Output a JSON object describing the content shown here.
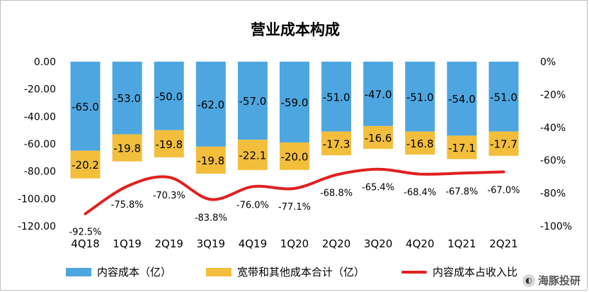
{
  "chart_data": {
    "type": "bar",
    "title": "营业成本构成",
    "categories": [
      "4Q18",
      "1Q19",
      "2Q19",
      "3Q19",
      "4Q19",
      "1Q20",
      "2Q20",
      "3Q20",
      "4Q20",
      "1Q21",
      "2Q21"
    ],
    "series": [
      {
        "name": "内容成本（亿）",
        "chart": "stacked-bar",
        "axis": "left",
        "values": [
          -65.0,
          -53.0,
          -50.0,
          -62.0,
          -57.0,
          -59.0,
          -51.0,
          -47.0,
          -51.0,
          -54.0,
          -51.0
        ],
        "labels": [
          "-65.0",
          "-53.0",
          "-50.0",
          "-62.0",
          "-57.0",
          "-59.0",
          "-51.0",
          "-47.0",
          "-51.0",
          "-54.0",
          "-51.0"
        ]
      },
      {
        "name": "宽带和其他成本合计（亿）",
        "chart": "stacked-bar",
        "axis": "left",
        "values": [
          -20.2,
          -19.8,
          -19.8,
          -19.8,
          -22.1,
          -20.0,
          -17.3,
          -16.6,
          -16.8,
          -17.1,
          -17.7
        ],
        "labels": [
          "-20.2",
          "-19.8",
          "-19.8",
          "-19.8",
          "-22.1",
          "-20.0",
          "-17.3",
          "-16.6",
          "-16.8",
          "-17.1",
          "-17.7"
        ]
      },
      {
        "name": "内容成本占收入比",
        "chart": "line",
        "axis": "right",
        "values": [
          -92.5,
          -75.8,
          -70.3,
          -83.8,
          -76.0,
          -77.1,
          -68.8,
          -65.4,
          -68.4,
          -67.8,
          -67.0
        ],
        "labels": [
          "-92.5%",
          "-75.8%",
          "-70.3%",
          "-83.8%",
          "-76.0%",
          "-77.1%",
          "-68.8%",
          "-65.4%",
          "-68.4%",
          "-67.8%",
          "-67.0%"
        ]
      }
    ],
    "y_left": {
      "lim": [
        -120,
        0
      ],
      "ticks": [
        0,
        -20,
        -40,
        -60,
        -80,
        -100,
        -120
      ],
      "tick_labels": [
        "0.00",
        "-20.00",
        "-40.00",
        "-60.00",
        "-80.00",
        "-100.00",
        "-120.00"
      ]
    },
    "y_right": {
      "lim": [
        -100,
        0
      ],
      "ticks": [
        0,
        -20,
        -40,
        -60,
        -80,
        -100
      ],
      "tick_labels": [
        "0%",
        "-20%",
        "-40%",
        "-60%",
        "-80%",
        "-100%"
      ]
    },
    "grid": false,
    "legend_position": "bottom",
    "colors": {
      "content_cost": "#4ea6e0",
      "bandwidth_cost": "#f2be3c",
      "ratio_line": "#e02020"
    }
  },
  "legend": {
    "content": "内容成本（亿）",
    "bandwidth": "宽带和其他成本合计（亿）",
    "ratio": "内容成本占收入比"
  },
  "watermark": {
    "text": "海豚投研"
  }
}
